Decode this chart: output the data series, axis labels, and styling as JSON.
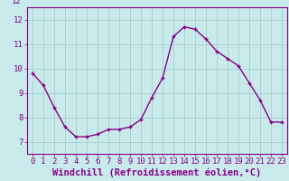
{
  "x": [
    0,
    1,
    2,
    3,
    4,
    5,
    6,
    7,
    8,
    9,
    10,
    11,
    12,
    13,
    14,
    15,
    16,
    17,
    18,
    19,
    20,
    21,
    22,
    23
  ],
  "y": [
    9.8,
    9.3,
    8.4,
    7.6,
    7.2,
    7.2,
    7.3,
    7.5,
    7.5,
    7.6,
    7.9,
    8.8,
    9.6,
    11.3,
    11.7,
    11.6,
    11.2,
    10.7,
    10.4,
    10.1,
    9.4,
    8.7,
    7.8,
    7.8
  ],
  "line_color": "#880088",
  "marker": "+",
  "bg_color": "#c8eaea",
  "grid_color": "#a0c8c8",
  "xlabel": "Windchill (Refroidissement éolien,°C)",
  "ylim_min": 6.5,
  "ylim_max": 12.5,
  "xlim_min": -0.5,
  "xlim_max": 23.5,
  "yticks": [
    7,
    8,
    9,
    10,
    11,
    12
  ],
  "xticks": [
    0,
    1,
    2,
    3,
    4,
    5,
    6,
    7,
    8,
    9,
    10,
    11,
    12,
    13,
    14,
    15,
    16,
    17,
    18,
    19,
    20,
    21,
    22,
    23
  ],
  "tick_color": "#880088",
  "label_color": "#880088",
  "font_size_xlabel": 7.5,
  "font_size_tick": 6.5,
  "line_width": 1.0,
  "marker_size": 3
}
